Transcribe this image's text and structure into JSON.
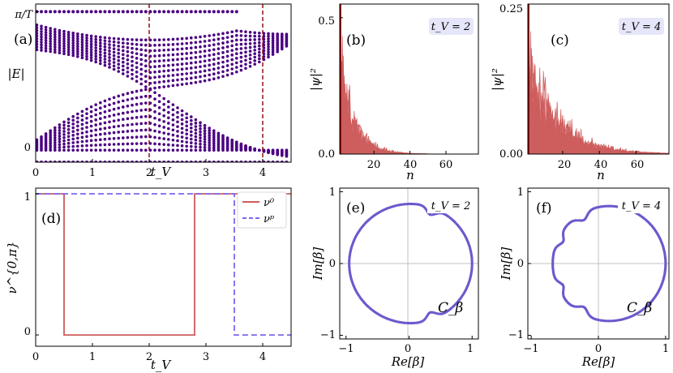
{
  "chart_data": [
    {
      "id": "a",
      "type": "scatter",
      "panel_label": "(a)",
      "xlabel": "t_V",
      "ylabel": "|E|",
      "xlim": [
        0,
        4.5
      ],
      "ylim": [
        0,
        3.3
      ],
      "xticks": [
        "0",
        "1",
        "2",
        "3",
        "4"
      ],
      "yticks": [
        "0",
        "π/T"
      ],
      "vlines": [
        2,
        4
      ],
      "color": "#4b0082",
      "vline_color": "#8b0000"
    },
    {
      "id": "b",
      "type": "area",
      "panel_label": "(b)",
      "xlabel": "n",
      "ylabel": "|ψ|²",
      "xlim": [
        1,
        78
      ],
      "ylim": [
        0,
        0.55
      ],
      "xticks": [
        "20",
        "40",
        "60"
      ],
      "yticks": [
        "0.0",
        "0.5"
      ],
      "badge": "t_V = 2",
      "decay_length": 8,
      "color": "#cd5c5c"
    },
    {
      "id": "c",
      "type": "area",
      "panel_label": "(c)",
      "xlabel": "n",
      "ylabel": "|ψ|²",
      "xlim": [
        1,
        78
      ],
      "ylim": [
        0,
        0.25
      ],
      "xticks": [
        "20",
        "40",
        "60"
      ],
      "yticks": [
        "0.00",
        "0.25"
      ],
      "badge": "t_V = 4",
      "decay_length": 16,
      "color": "#cd5c5c"
    },
    {
      "id": "d",
      "type": "line",
      "panel_label": "(d)",
      "xlabel": "t_V",
      "ylabel": "ν^{0,π}",
      "xlim": [
        0,
        4.5
      ],
      "ylim": [
        -0.08,
        1.04
      ],
      "xticks": [
        "0",
        "1",
        "2",
        "3",
        "4"
      ],
      "yticks": [
        "0",
        "1"
      ],
      "series": [
        {
          "name": "ν⁰",
          "style": "solid",
          "color": "#cd5c5c",
          "x": [
            0,
            0.5,
            0.5,
            2.8,
            2.8,
            4.5
          ],
          "y": [
            1,
            1,
            0,
            0,
            1,
            1
          ]
        },
        {
          "name": "νᵖ",
          "style": "dashed",
          "color": "#7b68ee",
          "x": [
            0,
            3.5,
            3.5,
            4.5
          ],
          "y": [
            1,
            1,
            0,
            0
          ]
        }
      ],
      "legend_position": "top-right"
    },
    {
      "id": "e",
      "type": "scatter",
      "panel_label": "(e)",
      "xlabel": "Re[β]",
      "ylabel": "Im[β]",
      "xlim": [
        -1.1,
        1.1
      ],
      "ylim": [
        -1.05,
        1.05
      ],
      "xticks": [
        "−1",
        "0",
        "1"
      ],
      "yticks": [
        "−1",
        "0",
        "1"
      ],
      "badge": "t_V = 2",
      "curve_label": "C_β",
      "color": "#6a5acd",
      "x_range": [
        -0.95,
        1.0
      ],
      "y_range": [
        -0.83,
        0.83
      ]
    },
    {
      "id": "f",
      "type": "scatter",
      "panel_label": "(f)",
      "xlabel": "Re[β]",
      "ylabel": "Im[β]",
      "xlim": [
        -1.05,
        1.05
      ],
      "ylim": [
        -1.05,
        1.05
      ],
      "xticks": [
        "−1",
        "0",
        "1"
      ],
      "yticks": [
        "−1",
        "0",
        "1"
      ],
      "badge": "t_V = 4",
      "curve_label": "C_β",
      "color": "#6a5acd",
      "x_range": [
        -0.68,
        1.0
      ],
      "y_range": [
        -0.8,
        0.8
      ]
    }
  ]
}
